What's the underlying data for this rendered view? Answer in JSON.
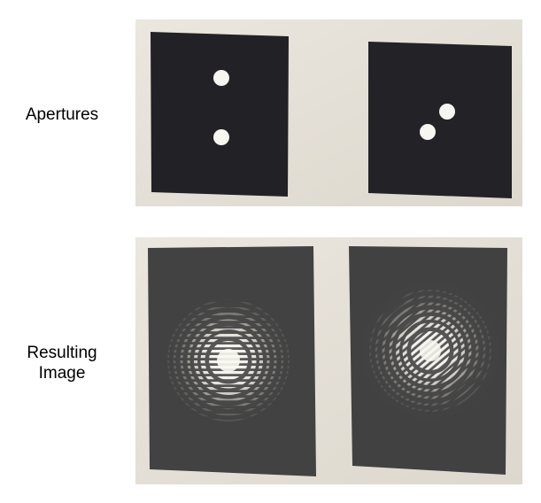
{
  "labels": {
    "apertures": "Apertures",
    "result_line1": "Resulting",
    "result_line2": "Image"
  },
  "colors": {
    "paper": "#e9e4dc",
    "card": "#222125",
    "film": "#424242",
    "light": "#f7f5ef"
  },
  "panels": [
    {
      "row": "apertures",
      "arrangement": "two holes, vertical"
    },
    {
      "row": "apertures",
      "arrangement": "two holes, diagonal"
    },
    {
      "row": "result",
      "arrangement": "rings with horizontal fringes"
    },
    {
      "row": "result",
      "arrangement": "rings with diagonal fringes"
    }
  ]
}
